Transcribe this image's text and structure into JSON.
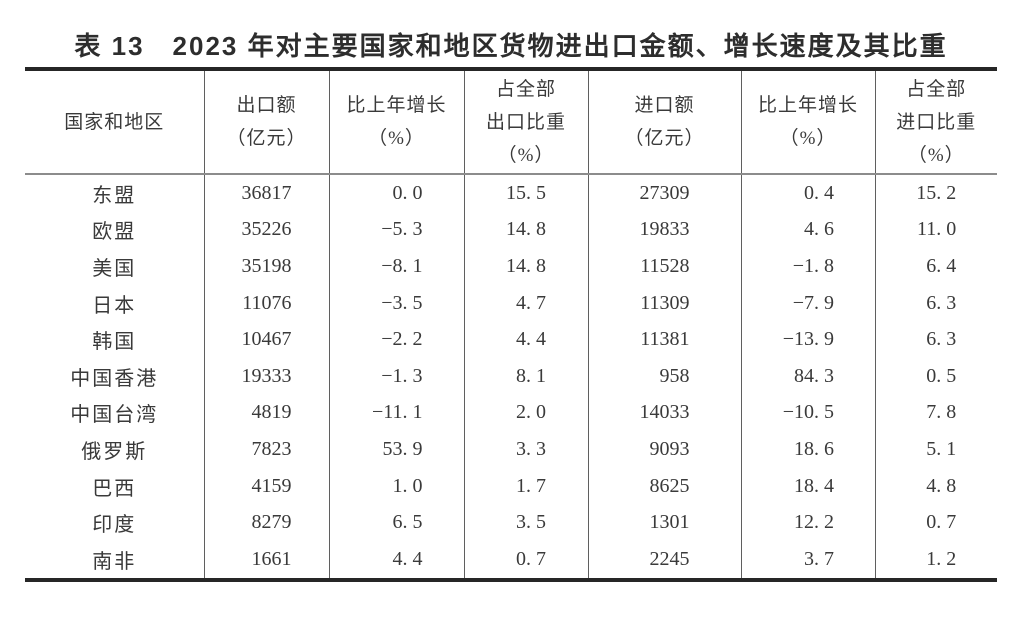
{
  "title": "表 13　2023 年对主要国家和地区货物进出口金额、增长速度及其比重",
  "colors": {
    "ink": "#3a3a3a",
    "thick_rule": "#262626",
    "thin_rule": "#8c8c8c",
    "column_separator": "#5f5f5f",
    "background": "#ffffff"
  },
  "table": {
    "columns": [
      "国家和地区",
      "出口额\n（亿元）",
      "比上年增长\n（%）",
      "占全部\n出口比重\n（%）",
      "进口额\n（亿元）",
      "比上年增长\n（%）",
      "占全部\n进口比重\n（%）"
    ],
    "rows": [
      {
        "region": "东盟",
        "export_amount": "36817",
        "export_growth": "0. 0",
        "export_share": "15. 5",
        "import_amount": "27309",
        "import_growth": "0. 4",
        "import_share": "15. 2"
      },
      {
        "region": "欧盟",
        "export_amount": "35226",
        "export_growth": "−5. 3",
        "export_share": "14. 8",
        "import_amount": "19833",
        "import_growth": "4. 6",
        "import_share": "11. 0"
      },
      {
        "region": "美国",
        "export_amount": "35198",
        "export_growth": "−8. 1",
        "export_share": "14. 8",
        "import_amount": "11528",
        "import_growth": "−1. 8",
        "import_share": "6. 4"
      },
      {
        "region": "日本",
        "export_amount": "11076",
        "export_growth": "−3. 5",
        "export_share": "4. 7",
        "import_amount": "11309",
        "import_growth": "−7. 9",
        "import_share": "6. 3"
      },
      {
        "region": "韩国",
        "export_amount": "10467",
        "export_growth": "−2. 2",
        "export_share": "4. 4",
        "import_amount": "11381",
        "import_growth": "−13. 9",
        "import_share": "6. 3"
      },
      {
        "region": "中国香港",
        "export_amount": "19333",
        "export_growth": "−1. 3",
        "export_share": "8. 1",
        "import_amount": "958",
        "import_growth": "84. 3",
        "import_share": "0. 5"
      },
      {
        "region": "中国台湾",
        "export_amount": "4819",
        "export_growth": "−11. 1",
        "export_share": "2. 0",
        "import_amount": "14033",
        "import_growth": "−10. 5",
        "import_share": "7. 8"
      },
      {
        "region": "俄罗斯",
        "export_amount": "7823",
        "export_growth": "53. 9",
        "export_share": "3. 3",
        "import_amount": "9093",
        "import_growth": "18. 6",
        "import_share": "5. 1"
      },
      {
        "region": "巴西",
        "export_amount": "4159",
        "export_growth": "1. 0",
        "export_share": "1. 7",
        "import_amount": "8625",
        "import_growth": "18. 4",
        "import_share": "4. 8"
      },
      {
        "region": "印度",
        "export_amount": "8279",
        "export_growth": "6. 5",
        "export_share": "3. 5",
        "import_amount": "1301",
        "import_growth": "12. 2",
        "import_share": "0. 7"
      },
      {
        "region": "南非",
        "export_amount": "1661",
        "export_growth": "4. 4",
        "export_share": "0. 7",
        "import_amount": "2245",
        "import_growth": "3. 7",
        "import_share": "1. 2"
      }
    ]
  }
}
